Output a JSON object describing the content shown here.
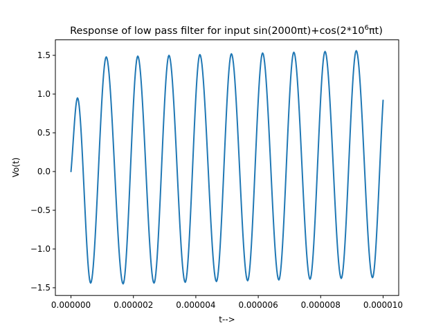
{
  "chart_data": {
    "type": "line",
    "title": "Response of low pass filter for input sin(2000πt)+cos(2*10",
    "title_superscript": "6",
    "title_suffix": "πt)",
    "xlabel": "t-->",
    "ylabel": "Vo(t)",
    "xlim": [
      -5e-07,
      1.05e-05
    ],
    "ylim": [
      -1.6,
      1.7
    ],
    "xticks": [
      0,
      2e-06,
      4e-06,
      6e-06,
      8e-06,
      1e-05
    ],
    "xtick_labels": [
      "0.000000",
      "0.000002",
      "0.000004",
      "0.000006",
      "0.000008",
      "0.000010"
    ],
    "yticks": [
      -1.5,
      -1.0,
      -0.5,
      0.0,
      0.5,
      1.0,
      1.5
    ],
    "ytick_labels": [
      "−1.5",
      "−1.0",
      "−0.5",
      "0.0",
      "0.5",
      "1.0",
      "1.5"
    ],
    "grid": false,
    "series": [
      {
        "color": "#1f77b4",
        "x": [
          0,
          2.1e-07,
          6.3e-07,
          1.13e-06,
          1.67e-06,
          2.14e-06,
          2.66e-06,
          3.14e-06,
          3.66e-06,
          4.13e-06,
          4.66e-06,
          5.14e-06,
          5.66e-06,
          6.14e-06,
          6.66e-06,
          7.14e-06,
          7.66e-06,
          8.14e-06,
          8.66e-06,
          9.14e-06,
          9.66e-06,
          1e-05
        ],
        "y": [
          0.0,
          0.95,
          -1.44,
          1.48,
          -1.45,
          1.49,
          -1.44,
          1.5,
          -1.43,
          1.51,
          -1.42,
          1.52,
          -1.41,
          1.53,
          -1.4,
          1.54,
          -1.39,
          1.55,
          -1.38,
          1.56,
          -1.37,
          0.92
        ]
      }
    ]
  }
}
